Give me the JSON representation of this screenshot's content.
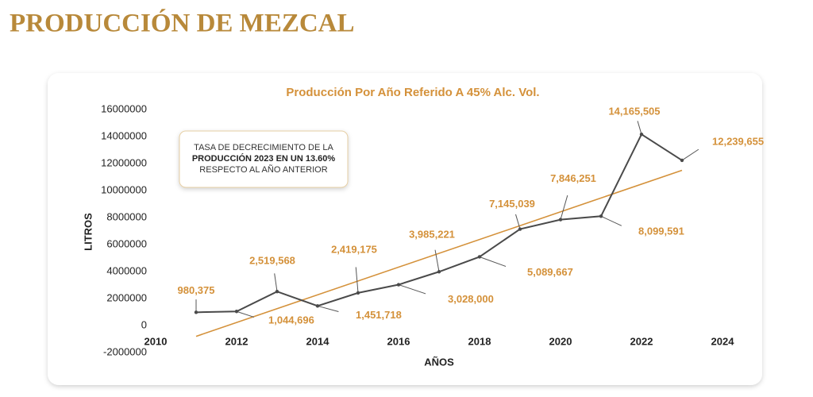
{
  "page_title": "PRODUCCIÓN DE MEZCAL",
  "chart_data": {
    "type": "line",
    "title": "Producción Por Año Referido A 45% Alc. Vol.",
    "x_label": "AÑOS",
    "y_label": "LITROS",
    "x": [
      2011,
      2012,
      2013,
      2014,
      2015,
      2016,
      2017,
      2018,
      2019,
      2020,
      2021,
      2022,
      2023
    ],
    "values": [
      980375,
      1044696,
      2519568,
      1451718,
      2419175,
      3028000,
      3985221,
      5089667,
      7145039,
      7846251,
      8099591,
      14165505,
      12239655
    ],
    "value_labels": [
      "980,375",
      "1,044,696",
      "2,519,568",
      "1,451,718",
      "2,419,175",
      "3,028,000",
      "3,985,221",
      "5,089,667",
      "7,145,039",
      "7,846,251",
      "8,099,591",
      "14,165,505",
      "12,239,655"
    ],
    "color": "#4a4a4a",
    "label_color": "#d4913a",
    "trendline": {
      "x": [
        2011,
        2023
      ],
      "values": [
        -800000,
        11500000
      ],
      "color": "#d4913a"
    },
    "xlim": [
      2010,
      2024
    ],
    "xticks": [
      2010,
      2012,
      2014,
      2016,
      2018,
      2020,
      2022,
      2024
    ],
    "ylim": [
      -2000000,
      16000000
    ],
    "yticks": [
      -2000000,
      0,
      2000000,
      4000000,
      6000000,
      8000000,
      10000000,
      12000000,
      14000000,
      16000000
    ],
    "annotation": [
      "TASA DE DECRECIMIENTO DE LA",
      "PRODUCCIÓN 2023 EN UN 13.60%",
      "RESPECTO AL AÑO ANTERIOR"
    ]
  }
}
